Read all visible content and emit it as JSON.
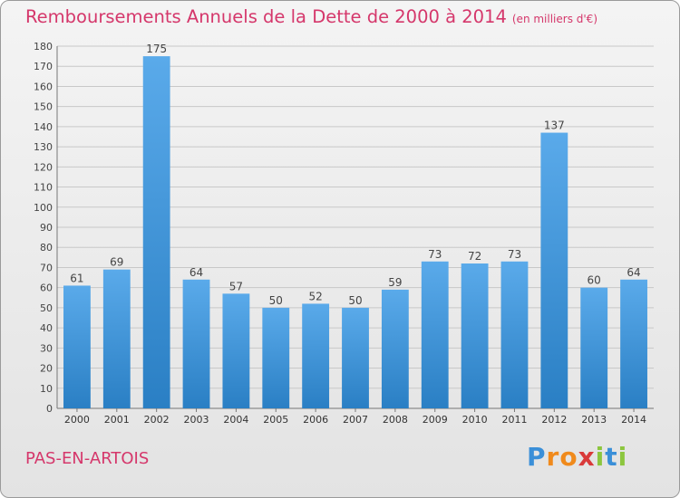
{
  "chart_data": {
    "type": "bar",
    "title": "Remboursements Annuels de la Dette de 2000 à 2014",
    "subtitle": "(en milliers d'€)",
    "categories": [
      "2000",
      "2001",
      "2002",
      "2003",
      "2004",
      "2005",
      "2006",
      "2007",
      "2008",
      "2009",
      "2010",
      "2011",
      "2012",
      "2013",
      "2014"
    ],
    "values": [
      61,
      69,
      175,
      64,
      57,
      50,
      52,
      50,
      59,
      73,
      72,
      73,
      137,
      60,
      64
    ],
    "ylim": [
      0,
      180
    ],
    "ytick_step": 10,
    "grid": true,
    "bar_color_top": "#5aaaea",
    "bar_color_bottom": "#2a7fc4"
  },
  "footer": {
    "place": "PAS-EN-ARTOIS",
    "logo_letters": [
      {
        "ch": "P",
        "color": "#3a8fd8"
      },
      {
        "ch": "r",
        "color": "#f08a1c"
      },
      {
        "ch": "o",
        "color": "#f08a1c"
      },
      {
        "ch": "x",
        "color": "#d93a3a"
      },
      {
        "ch": "i",
        "color": "#8cc63e"
      },
      {
        "ch": "t",
        "color": "#3a8fd8"
      },
      {
        "ch": "i",
        "color": "#8cc63e"
      }
    ]
  }
}
